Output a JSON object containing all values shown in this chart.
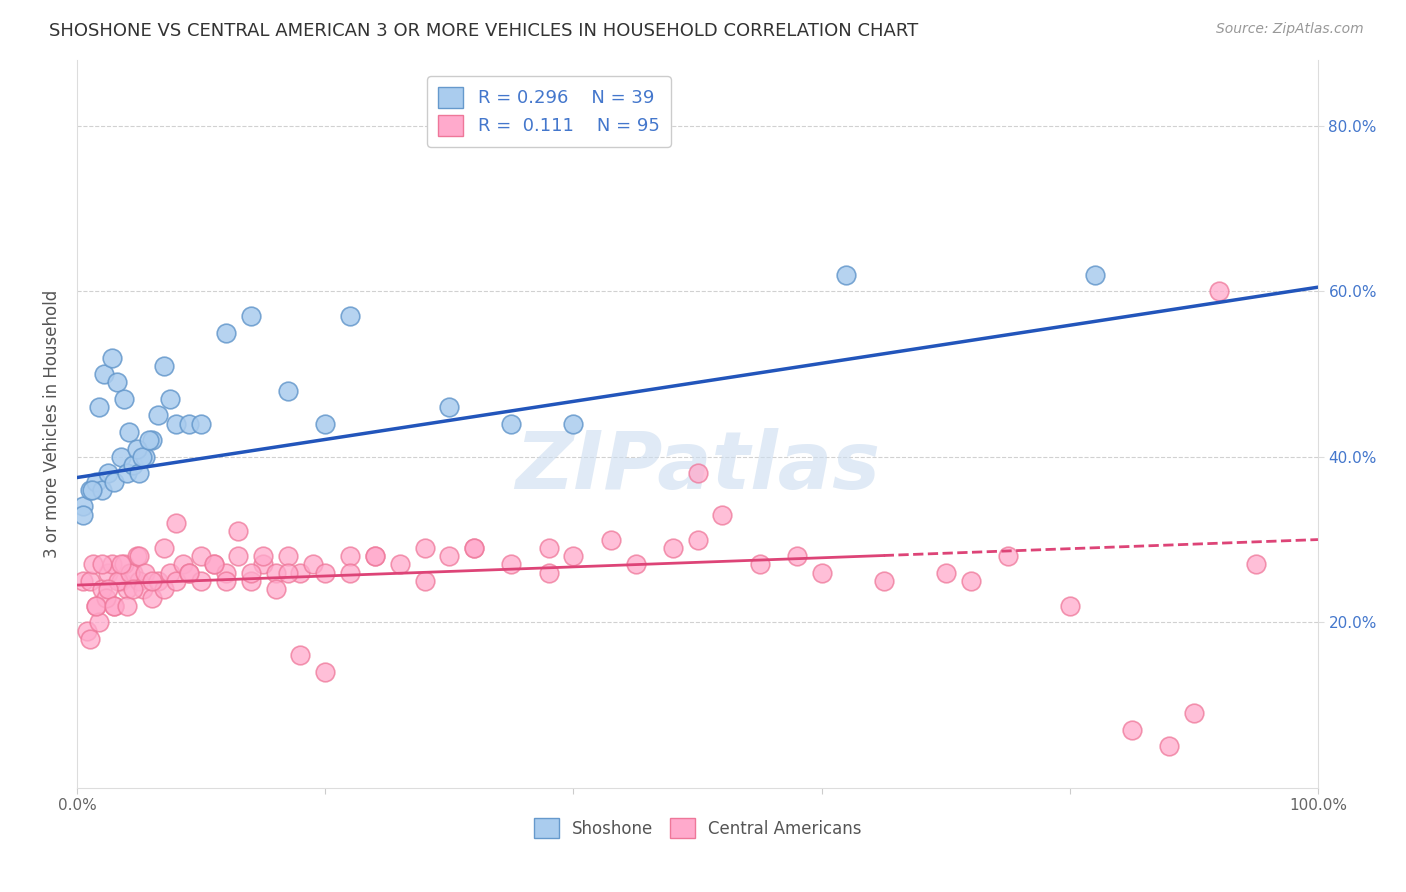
{
  "title": "SHOSHONE VS CENTRAL AMERICAN 3 OR MORE VEHICLES IN HOUSEHOLD CORRELATION CHART",
  "source": "Source: ZipAtlas.com",
  "ylabel": "3 or more Vehicles in Household",
  "xlim": [
    0,
    100
  ],
  "ylim": [
    0,
    88
  ],
  "yticks": [
    20,
    40,
    60,
    80
  ],
  "ytick_labels": [
    "20.0%",
    "40.0%",
    "60.0%",
    "80.0%"
  ],
  "xtick_left": "0.0%",
  "xtick_right": "100.0%",
  "blue_face": "#aaccee",
  "blue_edge": "#6699cc",
  "pink_face": "#ffaacc",
  "pink_edge": "#ee7799",
  "line_blue_color": "#2255bb",
  "line_pink_color": "#dd4477",
  "watermark_color": "#ccddf0",
  "title_color": "#333333",
  "source_color": "#999999",
  "right_axis_color": "#4477cc",
  "left_axis_color": "#555555",
  "shoshone_x": [
    0.5,
    1.0,
    1.5,
    2.0,
    2.5,
    3.0,
    3.5,
    4.0,
    4.5,
    5.0,
    5.5,
    6.0,
    7.0,
    8.0,
    0.5,
    1.2,
    1.8,
    2.2,
    2.8,
    3.2,
    3.8,
    4.2,
    4.8,
    5.2,
    5.8,
    6.5,
    7.5,
    9.0,
    10.0,
    12.0,
    14.0,
    17.0,
    20.0,
    22.0,
    30.0,
    35.0,
    40.0,
    82.0,
    62.0
  ],
  "shoshone_y": [
    34,
    36,
    37,
    36,
    38,
    37,
    40,
    38,
    39,
    38,
    40,
    42,
    51,
    44,
    33,
    36,
    46,
    50,
    52,
    49,
    47,
    43,
    41,
    40,
    42,
    45,
    47,
    44,
    44,
    55,
    57,
    48,
    44,
    57,
    46,
    44,
    44,
    62,
    62
  ],
  "central_x": [
    0.5,
    1.0,
    1.5,
    2.0,
    2.5,
    3.0,
    3.5,
    4.0,
    4.5,
    5.0,
    0.8,
    1.3,
    1.8,
    2.3,
    2.8,
    3.3,
    3.8,
    4.3,
    4.8,
    5.3,
    1.0,
    1.5,
    2.0,
    2.5,
    3.0,
    3.5,
    4.0,
    4.5,
    5.0,
    5.5,
    6.0,
    6.5,
    7.0,
    7.5,
    8.0,
    8.5,
    9.0,
    10.0,
    11.0,
    12.0,
    13.0,
    14.0,
    15.0,
    16.0,
    17.0,
    18.0,
    19.0,
    20.0,
    22.0,
    24.0,
    26.0,
    28.0,
    30.0,
    32.0,
    35.0,
    38.0,
    40.0,
    43.0,
    45.0,
    48.0,
    50.0,
    55.0,
    58.0,
    60.0,
    65.0,
    70.0,
    72.0,
    75.0,
    80.0,
    85.0,
    88.0,
    90.0,
    92.0,
    95.0,
    50.0,
    52.0,
    6.0,
    7.0,
    8.0,
    9.0,
    10.0,
    11.0,
    12.0,
    13.0,
    14.0,
    15.0,
    16.0,
    17.0,
    18.0,
    20.0,
    22.0,
    24.0,
    28.0,
    32.0,
    38.0
  ],
  "central_y": [
    25,
    25,
    22,
    24,
    26,
    22,
    25,
    24,
    26,
    25,
    19,
    27,
    20,
    23,
    27,
    25,
    27,
    26,
    28,
    24,
    18,
    22,
    27,
    24,
    22,
    27,
    22,
    24,
    28,
    26,
    23,
    25,
    24,
    26,
    25,
    27,
    26,
    25,
    27,
    26,
    28,
    25,
    27,
    26,
    28,
    26,
    27,
    26,
    28,
    28,
    27,
    29,
    28,
    29,
    27,
    29,
    28,
    30,
    27,
    29,
    30,
    27,
    28,
    26,
    25,
    26,
    25,
    28,
    22,
    7,
    5,
    9,
    60,
    27,
    38,
    33,
    25,
    29,
    32,
    26,
    28,
    27,
    25,
    31,
    26,
    28,
    24,
    26,
    16,
    14,
    26,
    28,
    25,
    29,
    26
  ],
  "blue_line_x0": 0,
  "blue_line_y0": 37.5,
  "blue_line_x1": 100,
  "blue_line_y1": 60.5,
  "pink_line_x0": 0,
  "pink_line_y0": 24.5,
  "pink_line_x1": 100,
  "pink_line_y1": 30.0
}
